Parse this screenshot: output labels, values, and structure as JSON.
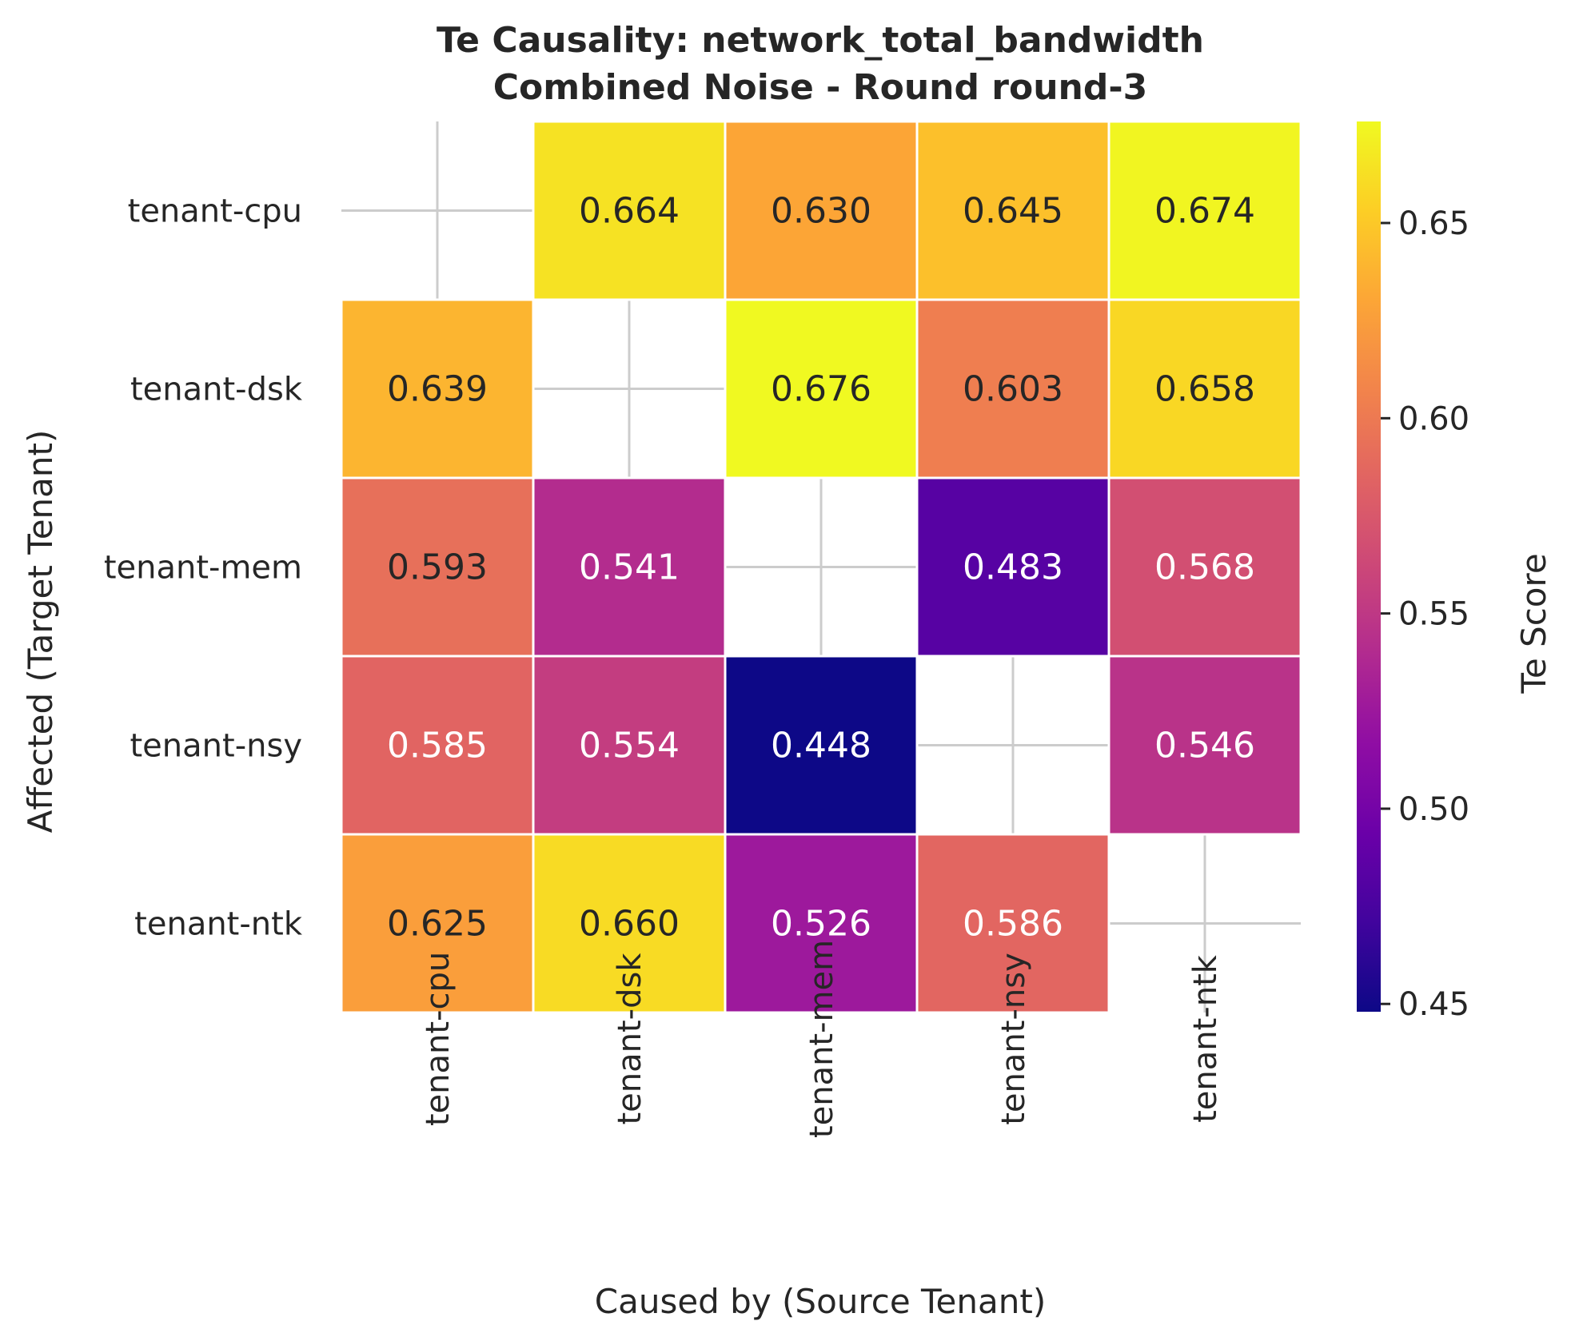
{
  "chart_data": {
    "type": "heatmap",
    "title": "Te Causality: network_total_bandwidth",
    "subtitle": "Combined Noise - Round round-3",
    "xlabel": "Caused by (Source Tenant)",
    "ylabel": "Affected (Target Tenant)",
    "x_categories": [
      "tenant-cpu",
      "tenant-dsk",
      "tenant-mem",
      "tenant-nsy",
      "tenant-ntk"
    ],
    "y_categories": [
      "tenant-cpu",
      "tenant-dsk",
      "tenant-mem",
      "tenant-nsy",
      "tenant-ntk"
    ],
    "values": [
      [
        null,
        0.664,
        0.63,
        0.645,
        0.674
      ],
      [
        0.639,
        null,
        0.676,
        0.603,
        0.658
      ],
      [
        0.593,
        0.541,
        null,
        0.483,
        0.568
      ],
      [
        0.585,
        0.554,
        0.448,
        null,
        0.546
      ],
      [
        0.625,
        0.66,
        0.526,
        0.586,
        null
      ]
    ],
    "value_labels": [
      [
        "",
        "0.664",
        "0.630",
        "0.645",
        "0.674"
      ],
      [
        "0.639",
        "",
        "0.676",
        "0.603",
        "0.658"
      ],
      [
        "0.593",
        "0.541",
        "",
        "0.483",
        "0.568"
      ],
      [
        "0.585",
        "0.554",
        "0.448",
        "",
        "0.546"
      ],
      [
        "0.625",
        "0.660",
        "0.526",
        "0.586",
        ""
      ]
    ],
    "colormap": "plasma",
    "vmin": 0.448,
    "vmax": 0.676,
    "colorbar": {
      "label": "Te Score",
      "ticks": [
        0.45,
        0.5,
        0.55,
        0.6,
        0.65
      ],
      "tick_labels": [
        "0.45",
        "0.50",
        "0.55",
        "0.60",
        "0.65"
      ]
    },
    "grid": true,
    "colors": {
      "text_dark": "#262626",
      "text_light": "#ffffff",
      "grid_line": "#cccccc",
      "cell_border": "#ffffff"
    }
  }
}
